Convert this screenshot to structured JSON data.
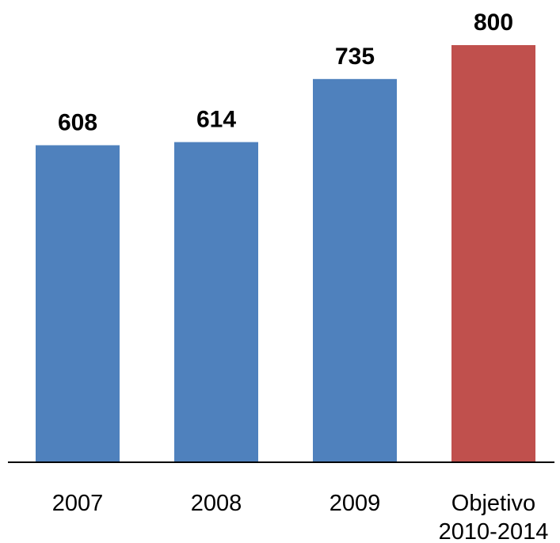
{
  "chart_data": {
    "type": "bar",
    "title": "",
    "xlabel": "",
    "ylabel": "",
    "categories": [
      "2007",
      "2008",
      "2009",
      "Objetivo 2010-2014"
    ],
    "category_lines": [
      [
        "2007"
      ],
      [
        "2008"
      ],
      [
        "2009"
      ],
      [
        "Objetivo",
        "2010-2014"
      ]
    ],
    "values": [
      608,
      614,
      735,
      800
    ],
    "value_labels": [
      "608",
      "614",
      "735",
      "800"
    ],
    "ylim": [
      0,
      800
    ],
    "grid": false,
    "legend": "none",
    "bar_colors": [
      "#4F81BD",
      "#4F81BD",
      "#4F81BD",
      "#C0504D"
    ]
  }
}
